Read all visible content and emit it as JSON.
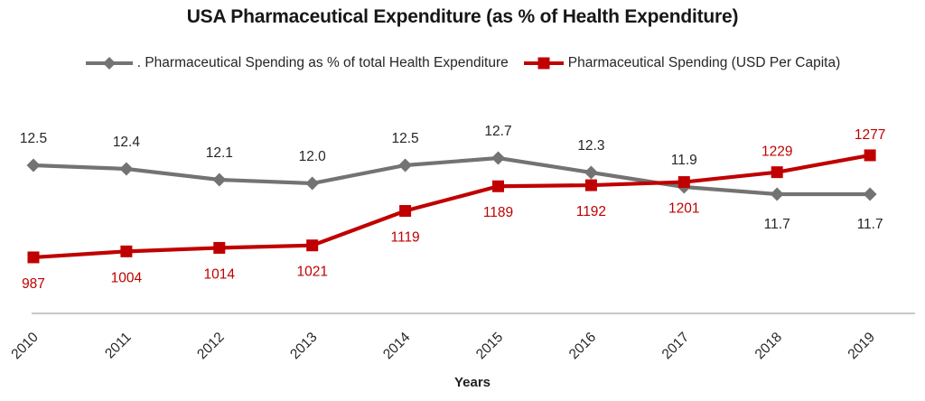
{
  "title": "USA Pharmaceutical Expenditure (as % of Health Expenditure)",
  "legend": {
    "items": [
      {
        "label": ". Pharmaceutical Spending as % of total Health Expenditure",
        "color": "#737373",
        "marker": "diamond"
      },
      {
        "label": "Pharmaceutical Spending (USD Per Capita)",
        "color": "#C00000",
        "marker": "square"
      }
    ],
    "position": "top"
  },
  "chart_data": {
    "type": "line",
    "title": "USA Pharmaceutical Expenditure (as % of Health Expenditure)",
    "xlabel": "Years",
    "ylabel": "",
    "grid": false,
    "legend_position": "top",
    "categories": [
      "2010",
      "2011",
      "2012",
      "2013",
      "2014",
      "2015",
      "2016",
      "2017",
      "2018",
      "2019"
    ],
    "series": [
      {
        "name": "Pharmaceutical Spending as % of total Health Expenditure",
        "values": [
          12.5,
          12.4,
          12.1,
          12.0,
          12.5,
          12.7,
          12.3,
          11.9,
          11.7,
          11.7
        ],
        "labels": [
          "12.5",
          "12.4",
          "12.1",
          "12.0",
          "12.5",
          "12.7",
          "12.3",
          "11.9",
          "11.7",
          "11.7"
        ],
        "label_side": [
          "above",
          "above",
          "above",
          "above",
          "above",
          "above",
          "above",
          "above",
          "below",
          "below"
        ],
        "color": "#737373",
        "label_color": "#262626",
        "marker": "diamond"
      },
      {
        "name": "Pharmaceutical Spending (USD Per Capita)",
        "values": [
          987,
          1004,
          1014,
          1021,
          1119,
          1189,
          1192,
          1201,
          1229,
          1277
        ],
        "labels": [
          "987",
          "1004",
          "1014",
          "1021",
          "1119",
          "1189",
          "1192",
          "1201",
          "1229",
          "1277"
        ],
        "label_side": [
          "below",
          "below",
          "below",
          "below",
          "below",
          "below",
          "below",
          "below",
          "above",
          "above"
        ],
        "color": "#C00000",
        "label_color": "#C00000",
        "marker": "square"
      }
    ],
    "colors": {
      "percent_series": "#737373",
      "usd_series": "#C00000",
      "axis_line": "#a6a6a6"
    }
  }
}
